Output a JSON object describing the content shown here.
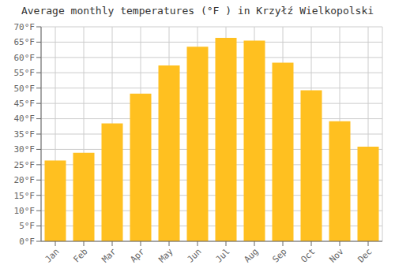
{
  "chart_data": {
    "type": "bar",
    "title": "Average monthly temperatures (°F ) in Krzyłź Wielkopolski",
    "categories": [
      "Jan",
      "Feb",
      "Mar",
      "Apr",
      "May",
      "Jun",
      "Jul",
      "Aug",
      "Sep",
      "Oct",
      "Nov",
      "Dec"
    ],
    "values": [
      26.4,
      28.9,
      38.5,
      48.2,
      57.4,
      63.5,
      66.4,
      65.5,
      58.3,
      49.3,
      39.2,
      30.9
    ],
    "color": "#FFC020",
    "ylim": [
      0,
      70
    ],
    "yticks": [
      {
        "value": 0,
        "label": "0°F"
      },
      {
        "value": 5,
        "label": "5°F"
      },
      {
        "value": 10,
        "label": "10°F"
      },
      {
        "value": 15,
        "label": "15°F"
      },
      {
        "value": 20,
        "label": "20°F"
      },
      {
        "value": 25,
        "label": "25°F"
      },
      {
        "value": 30,
        "label": "30°F"
      },
      {
        "value": 35,
        "label": "35°F"
      },
      {
        "value": 40,
        "label": "40°F"
      },
      {
        "value": 45,
        "label": "45°F"
      },
      {
        "value": 50,
        "label": "50°F"
      },
      {
        "value": 55,
        "label": "55°F"
      },
      {
        "value": 60,
        "label": "60°F"
      },
      {
        "value": 65,
        "label": "65°F"
      },
      {
        "value": 70,
        "label": "70°F"
      }
    ],
    "grid": true
  }
}
